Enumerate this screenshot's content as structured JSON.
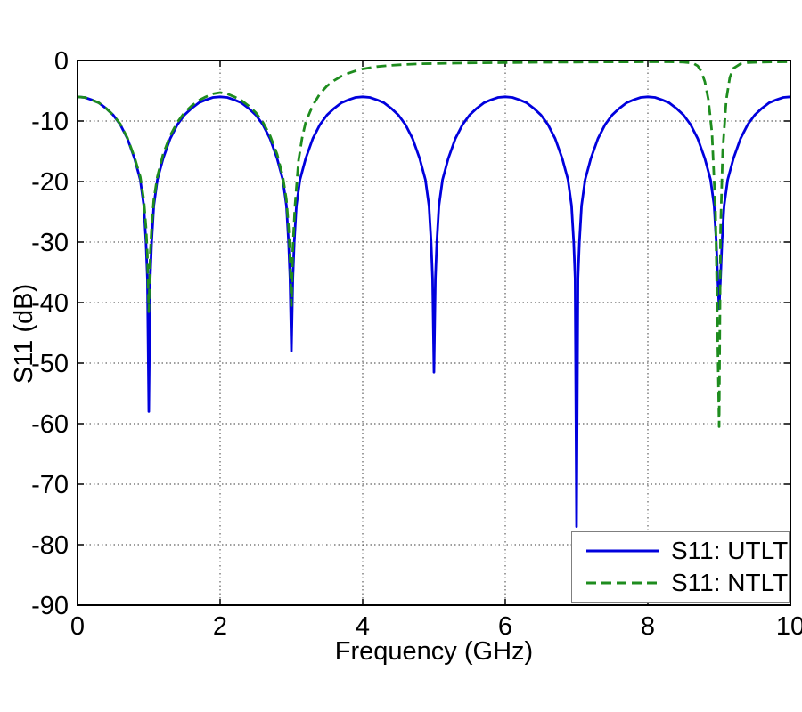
{
  "chart_data": {
    "type": "line",
    "title": "",
    "xlabel": "Frequency (GHz)",
    "ylabel": "S11 (dB)",
    "xlim": [
      0,
      10
    ],
    "ylim": [
      -90,
      0
    ],
    "x_ticks": [
      0,
      2,
      4,
      6,
      8,
      10
    ],
    "y_ticks": [
      0,
      -10,
      -20,
      -30,
      -40,
      -50,
      -60,
      -70,
      -80,
      -90
    ],
    "grid": "dotted",
    "grid_color": "#3d3d3d",
    "axis_color": "#000000",
    "legend_position": "lower right",
    "series": [
      {
        "name": "S11: UTLT",
        "color": "#0000dd",
        "line_style": "solid",
        "null_frequencies_ghz": [
          1,
          3,
          5,
          7,
          9
        ],
        "null_depths_db": [
          -58,
          -48,
          -51.5,
          -77,
          -41
        ],
        "points": [
          [
            0,
            -6
          ],
          [
            0.1,
            -6.1
          ],
          [
            0.2,
            -6.5
          ],
          [
            0.3,
            -7
          ],
          [
            0.4,
            -7.9
          ],
          [
            0.5,
            -9
          ],
          [
            0.6,
            -10.6
          ],
          [
            0.7,
            -12.9
          ],
          [
            0.8,
            -16.2
          ],
          [
            0.88,
            -19.7
          ],
          [
            0.93,
            -24
          ],
          [
            0.96,
            -30
          ],
          [
            0.98,
            -36
          ],
          [
            1,
            -58
          ],
          [
            1.02,
            -36
          ],
          [
            1.04,
            -30
          ],
          [
            1.07,
            -24
          ],
          [
            1.12,
            -19.7
          ],
          [
            1.2,
            -16.2
          ],
          [
            1.3,
            -12.9
          ],
          [
            1.4,
            -10.6
          ],
          [
            1.5,
            -9
          ],
          [
            1.6,
            -7.9
          ],
          [
            1.7,
            -7
          ],
          [
            1.8,
            -6.5
          ],
          [
            1.9,
            -6.1
          ],
          [
            2,
            -6
          ],
          [
            2.1,
            -6.1
          ],
          [
            2.2,
            -6.5
          ],
          [
            2.3,
            -7
          ],
          [
            2.4,
            -7.9
          ],
          [
            2.5,
            -9
          ],
          [
            2.6,
            -10.6
          ],
          [
            2.7,
            -12.9
          ],
          [
            2.8,
            -16.2
          ],
          [
            2.88,
            -19.7
          ],
          [
            2.93,
            -24
          ],
          [
            2.96,
            -30
          ],
          [
            2.98,
            -36
          ],
          [
            3,
            -48
          ],
          [
            3.02,
            -36
          ],
          [
            3.04,
            -30
          ],
          [
            3.07,
            -24
          ],
          [
            3.12,
            -19.7
          ],
          [
            3.2,
            -16.2
          ],
          [
            3.3,
            -12.9
          ],
          [
            3.4,
            -10.6
          ],
          [
            3.5,
            -9
          ],
          [
            3.6,
            -7.9
          ],
          [
            3.7,
            -7
          ],
          [
            3.8,
            -6.5
          ],
          [
            3.9,
            -6.1
          ],
          [
            4,
            -6
          ],
          [
            4.1,
            -6.1
          ],
          [
            4.2,
            -6.5
          ],
          [
            4.3,
            -7
          ],
          [
            4.4,
            -7.9
          ],
          [
            4.5,
            -9
          ],
          [
            4.6,
            -10.6
          ],
          [
            4.7,
            -12.9
          ],
          [
            4.8,
            -16.2
          ],
          [
            4.88,
            -19.7
          ],
          [
            4.93,
            -24
          ],
          [
            4.96,
            -30
          ],
          [
            4.98,
            -36
          ],
          [
            5,
            -51.5
          ],
          [
            5.02,
            -36
          ],
          [
            5.04,
            -30
          ],
          [
            5.07,
            -24
          ],
          [
            5.12,
            -19.7
          ],
          [
            5.2,
            -16.2
          ],
          [
            5.3,
            -12.9
          ],
          [
            5.4,
            -10.6
          ],
          [
            5.5,
            -9
          ],
          [
            5.6,
            -7.9
          ],
          [
            5.7,
            -7
          ],
          [
            5.8,
            -6.5
          ],
          [
            5.9,
            -6.1
          ],
          [
            6,
            -6
          ],
          [
            6.1,
            -6.1
          ],
          [
            6.2,
            -6.5
          ],
          [
            6.3,
            -7
          ],
          [
            6.4,
            -7.9
          ],
          [
            6.5,
            -9
          ],
          [
            6.6,
            -10.6
          ],
          [
            6.7,
            -12.9
          ],
          [
            6.8,
            -16.2
          ],
          [
            6.88,
            -19.7
          ],
          [
            6.93,
            -24
          ],
          [
            6.96,
            -30
          ],
          [
            6.98,
            -36
          ],
          [
            7,
            -77
          ],
          [
            7.02,
            -36
          ],
          [
            7.04,
            -30
          ],
          [
            7.07,
            -24
          ],
          [
            7.12,
            -19.7
          ],
          [
            7.2,
            -16.2
          ],
          [
            7.3,
            -12.9
          ],
          [
            7.4,
            -10.6
          ],
          [
            7.5,
            -9
          ],
          [
            7.6,
            -7.9
          ],
          [
            7.7,
            -7
          ],
          [
            7.8,
            -6.5
          ],
          [
            7.9,
            -6.1
          ],
          [
            8,
            -6
          ],
          [
            8.1,
            -6.1
          ],
          [
            8.2,
            -6.5
          ],
          [
            8.3,
            -7
          ],
          [
            8.4,
            -7.9
          ],
          [
            8.5,
            -9
          ],
          [
            8.6,
            -10.6
          ],
          [
            8.7,
            -12.9
          ],
          [
            8.8,
            -16.2
          ],
          [
            8.88,
            -19.7
          ],
          [
            8.93,
            -24
          ],
          [
            8.96,
            -30
          ],
          [
            8.98,
            -36
          ],
          [
            9,
            -41
          ],
          [
            9.02,
            -36
          ],
          [
            9.04,
            -30
          ],
          [
            9.07,
            -24
          ],
          [
            9.12,
            -19.7
          ],
          [
            9.2,
            -16.2
          ],
          [
            9.3,
            -12.9
          ],
          [
            9.4,
            -10.6
          ],
          [
            9.5,
            -9
          ],
          [
            9.6,
            -7.9
          ],
          [
            9.7,
            -7
          ],
          [
            9.8,
            -6.5
          ],
          [
            9.9,
            -6.1
          ],
          [
            10,
            -6
          ]
        ]
      },
      {
        "name": "S11: NTLT",
        "color": "#1e8c1e",
        "line_style": "dashed",
        "null_frequencies_ghz": [
          1,
          3,
          9
        ],
        "null_depths_db": [
          -41.5,
          -40.5,
          -60.5
        ],
        "points": [
          [
            0,
            -6
          ],
          [
            0.1,
            -6.1
          ],
          [
            0.2,
            -6.5
          ],
          [
            0.3,
            -7
          ],
          [
            0.4,
            -7.9
          ],
          [
            0.5,
            -9
          ],
          [
            0.6,
            -10.5
          ],
          [
            0.7,
            -12.8
          ],
          [
            0.8,
            -16
          ],
          [
            0.88,
            -19.2
          ],
          [
            0.93,
            -23
          ],
          [
            0.96,
            -27.5
          ],
          [
            0.98,
            -32
          ],
          [
            1,
            -41.5
          ],
          [
            1.02,
            -32
          ],
          [
            1.04,
            -27.5
          ],
          [
            1.07,
            -23
          ],
          [
            1.12,
            -19.2
          ],
          [
            1.2,
            -15.5
          ],
          [
            1.3,
            -12.4
          ],
          [
            1.4,
            -10.2
          ],
          [
            1.5,
            -8.6
          ],
          [
            1.6,
            -7.5
          ],
          [
            1.7,
            -6.6
          ],
          [
            1.8,
            -6
          ],
          [
            1.9,
            -5.5
          ],
          [
            2,
            -5.3
          ],
          [
            2.1,
            -5.5
          ],
          [
            2.2,
            -6
          ],
          [
            2.3,
            -6.6
          ],
          [
            2.4,
            -7.5
          ],
          [
            2.5,
            -8.6
          ],
          [
            2.6,
            -10.2
          ],
          [
            2.7,
            -12.4
          ],
          [
            2.8,
            -15.5
          ],
          [
            2.88,
            -19.2
          ],
          [
            2.93,
            -23
          ],
          [
            2.96,
            -27.5
          ],
          [
            2.98,
            -32
          ],
          [
            3,
            -40.5
          ],
          [
            3.02,
            -31
          ],
          [
            3.05,
            -24
          ],
          [
            3.1,
            -16.5
          ],
          [
            3.15,
            -12.8
          ],
          [
            3.2,
            -10.2
          ],
          [
            3.3,
            -7.4
          ],
          [
            3.4,
            -5.5
          ],
          [
            3.5,
            -4.2
          ],
          [
            3.6,
            -3.3
          ],
          [
            3.7,
            -2.6
          ],
          [
            3.8,
            -2.1
          ],
          [
            3.9,
            -1.7
          ],
          [
            4,
            -1.4
          ],
          [
            4.2,
            -1
          ],
          [
            4.4,
            -0.8
          ],
          [
            4.6,
            -0.65
          ],
          [
            4.8,
            -0.55
          ],
          [
            5,
            -0.5
          ],
          [
            5.5,
            -0.4
          ],
          [
            6,
            -0.35
          ],
          [
            6.5,
            -0.3
          ],
          [
            7,
            -0.27
          ],
          [
            7.5,
            -0.24
          ],
          [
            8,
            -0.22
          ],
          [
            8.3,
            -0.22
          ],
          [
            8.5,
            -0.28
          ],
          [
            8.6,
            -0.38
          ],
          [
            8.65,
            -0.55
          ],
          [
            8.7,
            -0.9
          ],
          [
            8.75,
            -1.8
          ],
          [
            8.8,
            -3.5
          ],
          [
            8.85,
            -6.5
          ],
          [
            8.9,
            -12
          ],
          [
            8.95,
            -25
          ],
          [
            9,
            -60.5
          ],
          [
            9.02,
            -28
          ],
          [
            9.05,
            -15
          ],
          [
            9.1,
            -6.5
          ],
          [
            9.15,
            -2.8
          ],
          [
            9.2,
            -1.3
          ],
          [
            9.3,
            -0.55
          ],
          [
            9.4,
            -0.35
          ],
          [
            9.6,
            -0.26
          ],
          [
            9.8,
            -0.23
          ],
          [
            10,
            -0.22
          ]
        ]
      }
    ]
  },
  "legend": {
    "entries": [
      "S11: UTLT",
      "S11: NTLT"
    ]
  }
}
